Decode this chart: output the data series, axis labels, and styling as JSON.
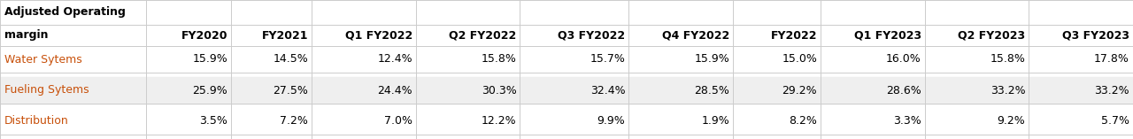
{
  "header_line1": "Adjusted Operating",
  "header_line2": "margin",
  "columns": [
    "FY2020",
    "FY2021",
    "Q1 FY2022",
    "Q2 FY2022",
    "Q3 FY2022",
    "Q4 FY2022",
    "FY2022",
    "Q1 FY2023",
    "Q2 FY2023",
    "Q3 FY2023"
  ],
  "rows": [
    {
      "label": "Water Sytems",
      "values": [
        "15.9%",
        "14.5%",
        "12.4%",
        "15.8%",
        "15.7%",
        "15.9%",
        "15.0%",
        "16.0%",
        "15.8%",
        "17.8%"
      ],
      "label_color": "#c8500a",
      "row_bg": "#ffffff"
    },
    {
      "label": "Fueling Sytems",
      "values": [
        "25.9%",
        "27.5%",
        "24.4%",
        "30.3%",
        "32.4%",
        "28.5%",
        "29.2%",
        "28.6%",
        "33.2%",
        "33.2%"
      ],
      "label_color": "#c8500a",
      "row_bg": "#efefef"
    },
    {
      "label": "Distribution",
      "values": [
        "3.5%",
        "7.2%",
        "7.0%",
        "12.2%",
        "9.9%",
        "1.9%",
        "8.2%",
        "3.3%",
        "9.2%",
        "5.7%"
      ],
      "label_color": "#c8500a",
      "row_bg": "#ffffff"
    }
  ],
  "header_bg": "#ffffff",
  "header_text_color": "#000000",
  "value_text_color": "#000000",
  "font_size": 9.0,
  "header_font_size": 9.0,
  "label_font_size": 9.0,
  "background_color": "#ffffff",
  "border_color": "#cccccc",
  "fig_width": 12.8,
  "fig_height": 1.57,
  "dpi": 100
}
